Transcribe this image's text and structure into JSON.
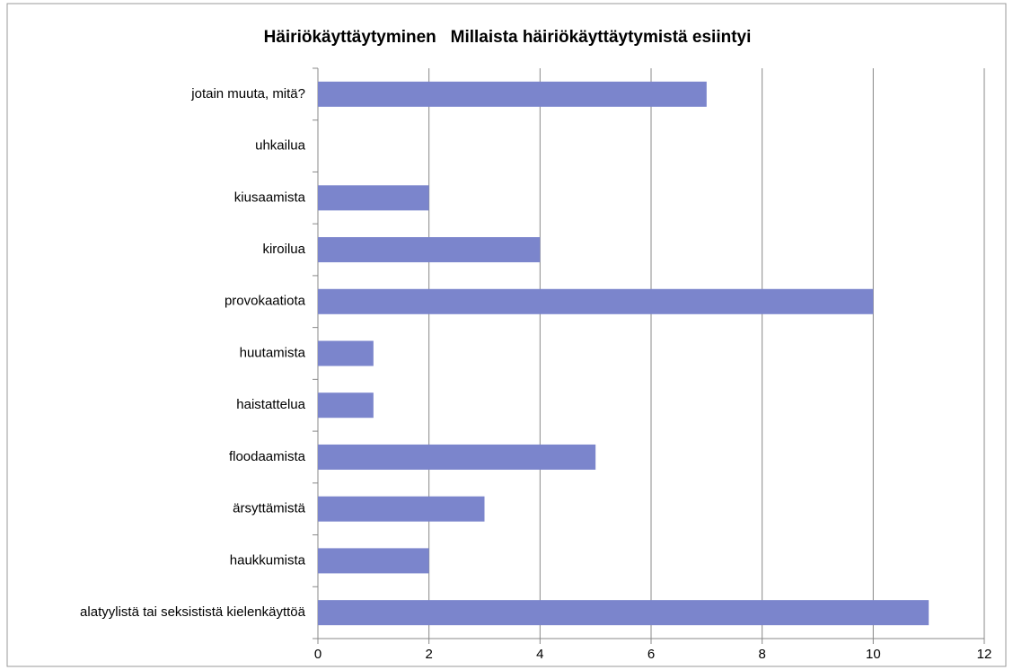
{
  "chart_data": {
    "type": "bar",
    "orientation": "horizontal",
    "title": "Häiriökäyttäytyminen   Millaista häiriökäyttäytymistä esiintyi",
    "categories": [
      "jotain muuta, mitä?",
      "uhkailua",
      "kiusaamista",
      "kiroilua",
      "provokaatiota",
      "huutamista",
      "haistattelua",
      "floodaamista",
      "ärsyttämistä",
      "haukkumista",
      "alatyylistä tai seksististä kielenkäyttöä"
    ],
    "values": [
      7,
      0,
      2,
      4,
      10,
      1,
      1,
      5,
      3,
      2,
      11
    ],
    "color": "#7b85cc",
    "xlim": [
      0,
      12
    ],
    "xticks": [
      0,
      2,
      4,
      6,
      8,
      10,
      12
    ],
    "grid": true
  }
}
